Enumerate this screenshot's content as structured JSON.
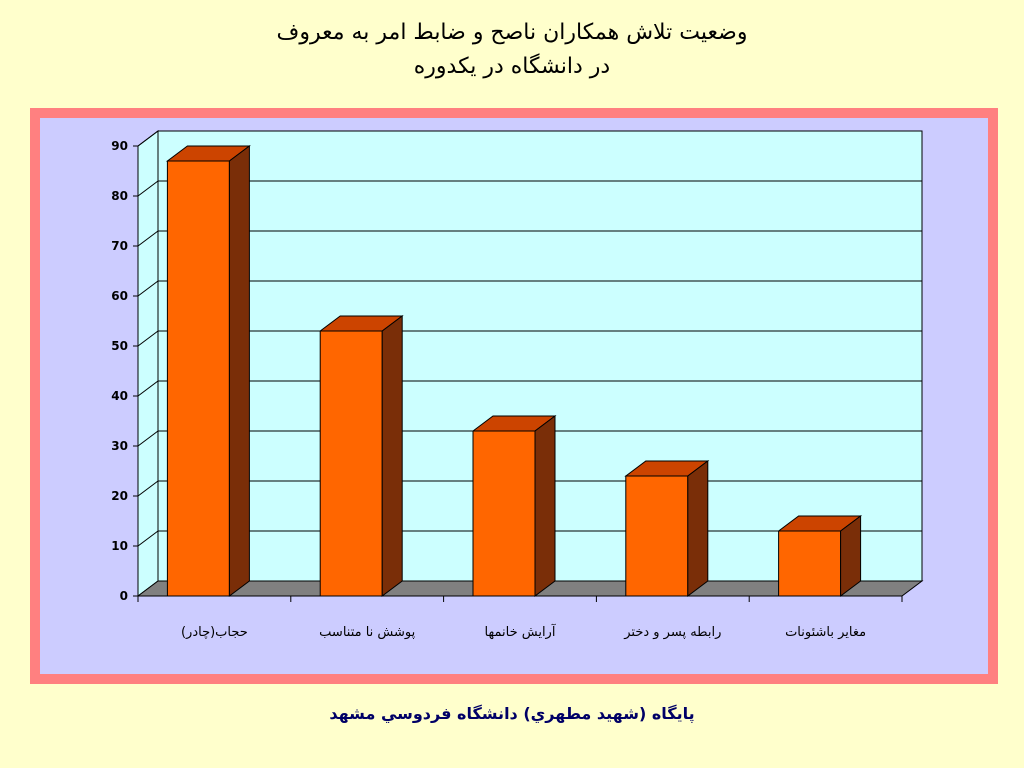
{
  "title_line1": "وضعيت تلاش همکاران ناصح و ضابط امر به معروف",
  "title_line2": "در دانشگاه در يکدوره",
  "footer": "پايگاه (شهيد مطهري) دانشگاه فردوسي مشهد",
  "colors": {
    "bar_front": "#ff6600",
    "bar_top": "#cc4400",
    "bar_side": "#7a2e08",
    "wall": "#ccffff",
    "floor": "#808080",
    "frame": "#ff8080",
    "plot_bg": "#ccccff"
  },
  "chart_data": {
    "type": "bar",
    "categories": [
      "حجاب(چادر)",
      "پوشش نا متناسب",
      "آرايش خانمها",
      "رابطه پسر و دختر",
      "مغاير باشئونات"
    ],
    "values": [
      87,
      53,
      33,
      24,
      13
    ],
    "ylim": [
      0,
      90
    ],
    "yticks": [
      0,
      10,
      20,
      30,
      40,
      50,
      60,
      70,
      80,
      90
    ],
    "title": "",
    "xlabel": "",
    "ylabel": "",
    "grid": true,
    "three_d": true
  }
}
